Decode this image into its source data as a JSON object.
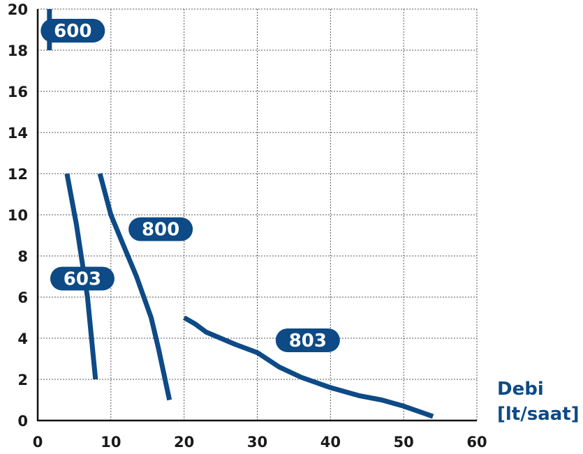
{
  "chart_data": {
    "type": "line",
    "xlim": [
      0,
      60
    ],
    "ylim": [
      0,
      20
    ],
    "x_ticks": [
      0,
      10,
      20,
      30,
      40,
      50,
      60
    ],
    "y_ticks": [
      0,
      2,
      4,
      6,
      8,
      10,
      12,
      14,
      16,
      18,
      20
    ],
    "grid": true,
    "xlabel_line1": "Debi",
    "xlabel_line2": "[lt/saat]",
    "ylabel": "",
    "title": "",
    "series": [
      {
        "name": "600",
        "points": [
          [
            1.6,
            18
          ],
          [
            1.6,
            20
          ]
        ]
      },
      {
        "name": "603",
        "points": [
          [
            4,
            12
          ],
          [
            5.3,
            9.5
          ],
          [
            6.8,
            6
          ],
          [
            7.9,
            2
          ]
        ]
      },
      {
        "name": "800",
        "points": [
          [
            8.5,
            12
          ],
          [
            10,
            10
          ],
          [
            11.5,
            8.7
          ],
          [
            13.5,
            7
          ],
          [
            15.5,
            5
          ],
          [
            16.5,
            3.5
          ],
          [
            18,
            1
          ]
        ]
      },
      {
        "name": "803",
        "points": [
          [
            20,
            5
          ],
          [
            21.5,
            4.7
          ],
          [
            23,
            4.3
          ],
          [
            25,
            4
          ],
          [
            27,
            3.7
          ],
          [
            30,
            3.3
          ],
          [
            33,
            2.6
          ],
          [
            36,
            2.1
          ],
          [
            40,
            1.6
          ],
          [
            44,
            1.2
          ],
          [
            47,
            1
          ],
          [
            50,
            0.7
          ],
          [
            54,
            0.2
          ]
        ]
      }
    ],
    "badge_anchors": [
      {
        "name": "600",
        "x": 4.8,
        "y": 18.95
      },
      {
        "name": "603",
        "x": 6.1,
        "y": 6.9
      },
      {
        "name": "800",
        "x": 16.8,
        "y": 9.3
      },
      {
        "name": "803",
        "x": 36.9,
        "y": 3.9
      }
    ],
    "colors": {
      "series": "#0d4a86",
      "badge_text": "#ffffff",
      "tick": "#1a1a1a",
      "grid": "#555555"
    }
  }
}
